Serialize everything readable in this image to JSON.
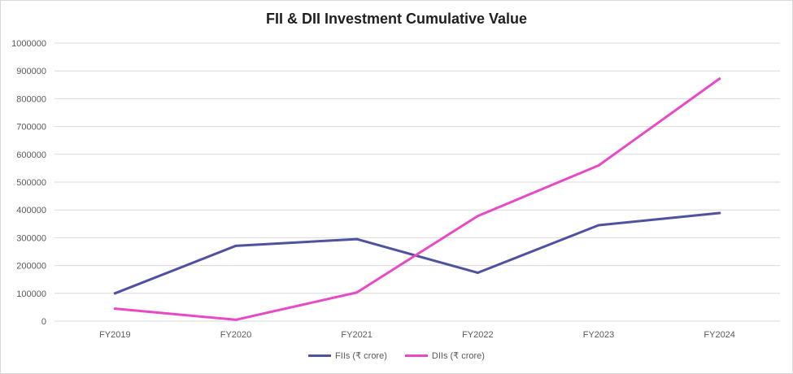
{
  "chart_data": {
    "type": "line",
    "title": "FII & DII Investment Cumulative Value",
    "categories": [
      "FY2019",
      "FY2020",
      "FY2021",
      "FY2022",
      "FY2023",
      "FY2024"
    ],
    "series": [
      {
        "name": "FIIs (₹ crore)",
        "color": "#4f529e",
        "values": [
          100000,
          271000,
          295000,
          174000,
          345000,
          389000
        ]
      },
      {
        "name": "DIIs (₹ crore)",
        "color": "#e84ac5",
        "values": [
          45000,
          5000,
          103000,
          378000,
          560000,
          872000
        ]
      }
    ],
    "ylim": [
      0,
      1000000
    ],
    "yticks": [
      0,
      100000,
      200000,
      300000,
      400000,
      500000,
      600000,
      700000,
      800000,
      900000,
      1000000
    ],
    "xlabel": "",
    "ylabel": "",
    "grid": true,
    "legend_position": "bottom"
  }
}
